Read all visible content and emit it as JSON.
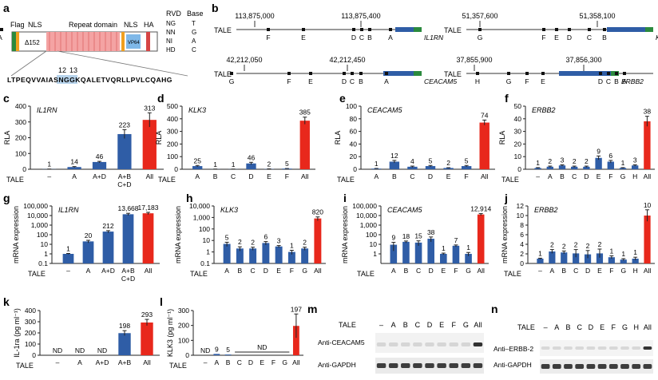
{
  "colors": {
    "blue": "#2f5da6",
    "red": "#e8281c",
    "axis": "#222222"
  },
  "panel_a": {
    "letter": "a",
    "labels": {
      "flag": "Flag",
      "nls1": "NLS",
      "delta": "Δ152",
      "repeat": "Repeat domain",
      "nls2": "NLS",
      "ha": "HA",
      "vp64": "VP64",
      "num12": "12",
      "num13": "13"
    },
    "sequence": "LTPEQVVAIASNGGKQALETVQRLLPVLCQAHG",
    "rvd_table": {
      "head": [
        "RVD",
        "Base"
      ],
      "rows": [
        [
          "NG",
          "T"
        ],
        [
          "NN",
          "G"
        ],
        [
          "NI",
          "A"
        ],
        [
          "HD",
          "C"
        ]
      ]
    }
  },
  "panel_b": {
    "letter": "b",
    "genes": [
      {
        "gene": "IL1RN",
        "ticks": [
          "113,875,000",
          "113,875,400"
        ],
        "sites": [
          "F",
          "E",
          "D",
          "C",
          "B",
          "A"
        ]
      },
      {
        "gene": "KLK3",
        "ticks": [
          "51,357,600",
          "51,358,100"
        ],
        "sites": [
          "G",
          "F",
          "E",
          "D",
          "C",
          "B",
          "A"
        ]
      },
      {
        "gene": "CEACAM5",
        "ticks": [
          "42,212,050",
          "42,212,450"
        ],
        "sites": [
          "G",
          "F",
          "E",
          "D",
          "C",
          "B",
          "A"
        ]
      },
      {
        "gene": "ERBB2",
        "ticks": [
          "37,855,900",
          "37,856,300"
        ],
        "sites": [
          "H",
          "G",
          "F",
          "E",
          "D",
          "C",
          "B",
          "A"
        ]
      }
    ],
    "tale_label": "TALE"
  },
  "x_label": "TALE",
  "chart_data": [
    {
      "panel": "c",
      "type": "bar",
      "title": "IL1RN",
      "ylabel": "RLA",
      "ylim": [
        0,
        400
      ],
      "yticks": [
        0,
        100,
        200,
        300,
        400
      ],
      "log": false,
      "categories": [
        "–",
        "A",
        "A+D",
        "A+B\nC+D",
        "All"
      ],
      "values": [
        1,
        14,
        46,
        223,
        313
      ],
      "errors": [
        0.3,
        3,
        4,
        28,
        45
      ],
      "labels": [
        "1",
        "14",
        "46",
        "223",
        "313"
      ],
      "colors": [
        "blue",
        "blue",
        "blue",
        "blue",
        "red"
      ]
    },
    {
      "panel": "d",
      "type": "bar",
      "title": "KLK3",
      "ylabel": "RLA",
      "ylim": [
        0,
        500
      ],
      "yticks": [
        0,
        100,
        200,
        300,
        400,
        500
      ],
      "log": false,
      "categories": [
        "A",
        "B",
        "C",
        "D",
        "E",
        "F",
        "All"
      ],
      "values": [
        25,
        1,
        1,
        46,
        2,
        5,
        385
      ],
      "errors": [
        5,
        0.5,
        0.5,
        9,
        1,
        1,
        28
      ],
      "labels": [
        "25",
        "1",
        "1",
        "46",
        "2",
        "5",
        "385"
      ],
      "colors": [
        "blue",
        "blue",
        "blue",
        "blue",
        "blue",
        "blue",
        "red"
      ]
    },
    {
      "panel": "e",
      "type": "bar",
      "title": "CEACAM5",
      "ylabel": "RLA",
      "ylim": [
        0,
        100
      ],
      "yticks": [
        0,
        20,
        40,
        60,
        80,
        100
      ],
      "log": false,
      "categories": [
        "A",
        "B",
        "C",
        "D",
        "E",
        "F",
        "All"
      ],
      "values": [
        1,
        12,
        4,
        5,
        2,
        5,
        74
      ],
      "errors": [
        0.3,
        2,
        1,
        1,
        0.5,
        1,
        4
      ],
      "labels": [
        "1",
        "12",
        "4",
        "5",
        "2",
        "5",
        "74"
      ],
      "colors": [
        "blue",
        "blue",
        "blue",
        "blue",
        "blue",
        "blue",
        "red"
      ]
    },
    {
      "panel": "f",
      "type": "bar",
      "title": "ERBB2",
      "ylabel": "RLA",
      "ylim": [
        0,
        50
      ],
      "yticks": [
        0,
        10,
        20,
        30,
        40,
        50
      ],
      "log": false,
      "categories": [
        "–",
        "A",
        "B",
        "C",
        "D",
        "E",
        "F",
        "G",
        "H",
        "All"
      ],
      "values": [
        1,
        2,
        3,
        2,
        2,
        9,
        6,
        1,
        3,
        38
      ],
      "errors": [
        0.3,
        0.5,
        0.5,
        0.5,
        0.5,
        1.5,
        1,
        0.3,
        0.5,
        4
      ],
      "labels": [
        "1",
        "2",
        "3",
        "2",
        "2",
        "9",
        "6",
        "1",
        "3",
        "38"
      ],
      "colors": [
        "blue",
        "blue",
        "blue",
        "blue",
        "blue",
        "blue",
        "blue",
        "blue",
        "blue",
        "red"
      ]
    },
    {
      "panel": "g",
      "type": "bar",
      "title": "IL1RN",
      "ylabel": "mRNA expression",
      "ylim": [
        0.1,
        100000
      ],
      "yticks": [
        0.1,
        1,
        10,
        100,
        1000,
        10000,
        100000
      ],
      "yticklabels": [
        "0.1",
        "1",
        "10",
        "100",
        "1,000",
        "10,000",
        "100,000"
      ],
      "log": true,
      "categories": [
        "–",
        "A",
        "A+D",
        "A+B\nC+D",
        "All"
      ],
      "values": [
        1,
        20,
        212,
        13668,
        17183
      ],
      "errors": [
        0.1,
        6,
        55,
        3500,
        4500
      ],
      "labels": [
        "1",
        "20",
        "212",
        "13,668",
        "17,183"
      ],
      "colors": [
        "blue",
        "blue",
        "blue",
        "blue",
        "red"
      ]
    },
    {
      "panel": "h",
      "type": "bar",
      "title": "KLK3",
      "ylabel": "mRNA expression",
      "ylim": [
        0.1,
        10000
      ],
      "yticks": [
        0.1,
        1,
        10,
        100,
        1000,
        10000
      ],
      "yticklabels": [
        "0.1",
        "1",
        "10",
        "100",
        "1,000",
        "10,000"
      ],
      "log": true,
      "categories": [
        "A",
        "B",
        "C",
        "D",
        "E",
        "F",
        "G",
        "All"
      ],
      "values": [
        5,
        2,
        2,
        6,
        3,
        1,
        2,
        820
      ],
      "errors": [
        2,
        0.8,
        0.6,
        2,
        0.6,
        0.4,
        0.6,
        300
      ],
      "labels": [
        "5",
        "2",
        "2",
        "6",
        "3",
        "1",
        "2",
        "820"
      ],
      "colors": [
        "blue",
        "blue",
        "blue",
        "blue",
        "blue",
        "blue",
        "blue",
        "red"
      ]
    },
    {
      "panel": "i",
      "type": "bar",
      "title": "CEACAM5",
      "ylabel": "mRNA expression",
      "ylim": [
        0.1,
        100000
      ],
      "yticks": [
        1,
        10,
        100,
        1000,
        10000,
        100000
      ],
      "yticklabels": [
        "1",
        "10",
        "100",
        "1,000",
        "10,000",
        "100,000"
      ],
      "log": true,
      "categories": [
        "A",
        "B",
        "C",
        "D",
        "E",
        "F",
        "G",
        "All"
      ],
      "values": [
        9,
        18,
        15,
        38,
        1,
        7,
        1,
        12914
      ],
      "errors": [
        7,
        4,
        8,
        20,
        0.2,
        1.5,
        0.4,
        3000
      ],
      "labels": [
        "9",
        "18",
        "15",
        "38",
        "1",
        "7",
        "1",
        "12,914"
      ],
      "colors": [
        "blue",
        "blue",
        "blue",
        "blue",
        "blue",
        "blue",
        "blue",
        "red"
      ]
    },
    {
      "panel": "j",
      "type": "bar",
      "title": "ERBB2",
      "ylabel": "mRNA expression",
      "ylim": [
        0,
        12
      ],
      "yticks": [
        0,
        2,
        4,
        6,
        8,
        10,
        12
      ],
      "log": false,
      "categories": [
        "–",
        "A",
        "B",
        "C",
        "D",
        "E",
        "F",
        "G",
        "H",
        "All"
      ],
      "values": [
        1,
        2.5,
        2.3,
        2.1,
        1.9,
        2.1,
        1.3,
        0.8,
        1,
        10
      ],
      "errors": [
        0.1,
        0.4,
        0.3,
        0.8,
        0.8,
        0.9,
        0.3,
        0.2,
        0.3,
        1.2
      ],
      "labels": [
        "1",
        "2",
        "2",
        "2",
        "2",
        "2",
        "1",
        "1",
        "1",
        "10"
      ],
      "colors": [
        "blue",
        "blue",
        "blue",
        "blue",
        "blue",
        "blue",
        "blue",
        "blue",
        "blue",
        "red"
      ]
    },
    {
      "panel": "k",
      "type": "bar",
      "title": "",
      "ylabel": "IL-1ra (pg ml⁻¹)",
      "ylim": [
        0,
        400
      ],
      "yticks": [
        0,
        100,
        200,
        300,
        400
      ],
      "log": false,
      "categories": [
        "–",
        "A",
        "A+D",
        "A+B",
        "All"
      ],
      "values": [
        0,
        0,
        0,
        198,
        293
      ],
      "errors": [
        0,
        0,
        0,
        22,
        28
      ],
      "labels": [
        "ND",
        "ND",
        "ND",
        "198",
        "293"
      ],
      "colors": [
        "blue",
        "blue",
        "blue",
        "blue",
        "red"
      ]
    },
    {
      "panel": "l",
      "type": "bar",
      "title": "",
      "ylabel": "KLK3 (pg ml⁻¹)",
      "ylim": [
        0,
        300
      ],
      "yticks": [
        0,
        100,
        200,
        300
      ],
      "log": false,
      "categories": [
        "–",
        "A",
        "B",
        "C",
        "D",
        "E",
        "F",
        "G",
        "All"
      ],
      "values": [
        0,
        9,
        5,
        0,
        0,
        0,
        0,
        0,
        197
      ],
      "errors": [
        0,
        0,
        0,
        0,
        0,
        0,
        0,
        0,
        80
      ],
      "labels": [
        "ND",
        "9",
        "5",
        "",
        "",
        "",
        "",
        "",
        "197"
      ],
      "colors": [
        "blue",
        "blue",
        "blue",
        "blue",
        "blue",
        "blue",
        "blue",
        "blue",
        "red"
      ],
      "group_label": "ND"
    }
  ],
  "blot_m": {
    "letter": "m",
    "tale_label": "TALE",
    "lanes": [
      "–",
      "A",
      "B",
      "C",
      "D",
      "E",
      "F",
      "G",
      "All"
    ],
    "rows": [
      "Anti-CEACAM5",
      "Anti-GAPDH"
    ]
  },
  "blot_n": {
    "letter": "n",
    "tale_label": "TALE",
    "lanes": [
      "–",
      "A",
      "B",
      "C",
      "D",
      "E",
      "F",
      "G",
      "H",
      "All"
    ],
    "rows": [
      "Anti–ERBB-2",
      "Anti-GAPDH"
    ]
  }
}
